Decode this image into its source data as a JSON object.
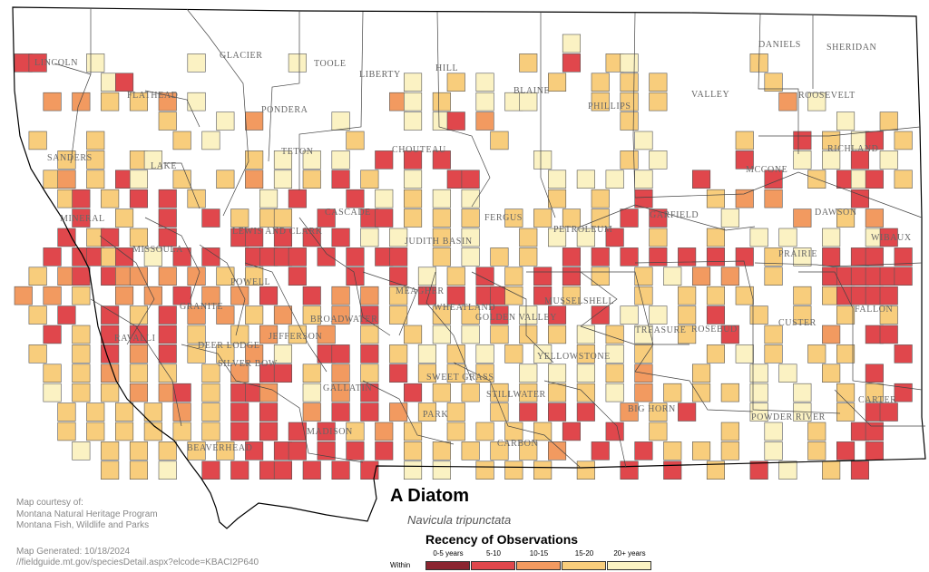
{
  "species": {
    "common_name": "A Diatom",
    "scientific_name": "Navicula tripunctata"
  },
  "legend": {
    "title": "Recency of Observations",
    "within_label": "Within",
    "items": [
      {
        "label": "0-5 years",
        "color": "#8b2530"
      },
      {
        "label": "5-10",
        "color": "#e0474c"
      },
      {
        "label": "10-15",
        "color": "#f29a60"
      },
      {
        "label": "15-20",
        "color": "#f8cd7c"
      },
      {
        "label": "20+ years",
        "color": "#fbf2c3"
      }
    ]
  },
  "credits": {
    "line1": "Map courtesy of:",
    "line2": "Montana Natural Heritage Program",
    "line3": "Montana Fish, Wildlife and Parks",
    "generated": "Map Generated: 10/18/2024",
    "url": "//fieldguide.mt.gov/speciesDetail.aspx?elcode=KBACI2P640"
  },
  "county_labels": [
    "GLACIER",
    "TOOLE",
    "LIBERTY",
    "HILL",
    "BLAINE",
    "PHILLIPS",
    "VALLEY",
    "DANIELS",
    "SHERIDAN",
    "LINCOLN",
    "FLATHEAD",
    "PONDERA",
    "ROOSEVELT",
    "TETON",
    "CHOUTEAU",
    "RICHLAND",
    "SANDERS",
    "LAKE",
    "MCCONE",
    "CASCADE",
    "FERGUS",
    "GARFIELD",
    "DAWSON",
    "MINERAL",
    "PETROLEUM",
    "LEWIS AND CLARK",
    "MISSOULA",
    "JUDITH BASIN",
    "PRAIRIE",
    "WIBAUX",
    "POWELL",
    "MEAGHER",
    "MUSSELSHELL",
    "GRANITE",
    "WHEATLAND",
    "GOLDEN VALLEY",
    "CUSTER",
    "FALLON",
    "RAVALLI",
    "DEER LODGE",
    "BROADWATER",
    "JEFFERSON",
    "ROSEBUD",
    "TREASURE",
    "SILVER BOW",
    "YELLOWSTONE",
    "SWEET GRASS",
    "STILLWATER",
    "GALLATIN",
    "PARK",
    "BIG HORN",
    "CARTER",
    "POWDER RIVER",
    "MADISON",
    "BEAVERHEAD",
    "CARBON"
  ],
  "observations": {
    "column_origin": 16,
    "row_origin": 38,
    "cell_size": 21.4,
    "grid": [
      "                                      5                       ",
      "X0   5      4      5               3  X  35        3          ",
      "      4X                   4  3 4    3  3 3 3       3         ",
      "  2 1 3 3 2 4             24 3  4 54    3 3 3        2 4      ",
      "          3   4 2     4    4 4X 2         3              4  3  ",
      " 3   3     3 4         3         3         4      3   X 3 4X 3 ",
      "   3 3  34      3 4 4 4  X X X      4     3 5     X   4 4 X 5 ",
      "  32 3 X4  3  3 2 4 3 X 3  4  XX     4 4 4 4   X    X  3 X4X 3 ",
      "   3X 3 X X 3    4 X   X 4 3 4 4     3  3  X    3 2 2     X   X",
      "    X  3  X  X 3 33  X  XX 3 3 3  3 3 3 3 X X    4    2  3 2  ",
      "   X 3X 3 X    XX X X X 4 4  3 4   3 4 4 X  3   3  4 4  4  4X X",
      "  X XX3X 4 X X  XXXX X X XX  3 4 3 3  X X X X X X X 3 4 X XX X",
      " 3 2X X22 2 2 3 3  X   X  X 4 3 X 3 X X 3  3 4 2 2  3   XXXXXX",
      "2 2 3  2 2 X 2 2 X  X 2 2 3 X X XX3 X 3    3  3 3 3   3 3XXXX ",
      " 3 X  X 3 X 2 2 3 2 3 2 X 3  3 3 X 4 X  X 4 4 3 X  3  3  3  3 ",
      "  X 3 X X X 3  3 2 3 2  3  3 4 4 3 3 3 5 3 4  3  X  3   2  XX ",
      " 3  3 X 2 X 3 3 2 4  XX X 3 4 3 5 3 4  3 4 3    3 4 3  3 3   X",
      "  3 3 2 3 3  3 2 XX 3 2 3 X 3 3 3  4 4 4 3 2   3   4 4  3  X  ",
      "  4 3 3 2 2X 3 XX2  4 2 X  X 3 3 3 3 3 3 4 2 3 3 3 4  4  3 3 X",
      "   3 3 3 3 2 3 X X  2 X X 2 3 3  3 X X X  2 3 X    4  4  3 XX ",
      "   3 3 3 3 3 3 X X X X 3 2 3  3 3 3 3 X  X  3    3  4  3  XX  ",
      "    4 3 3 3 3 3 X XX X X X 3 3 3 3 3 2  X  X 3 3 3  4  3 X X  ",
      "      3 3 4  X X XX X X X  4 4  3 3 3  3  X  X  3  X 4  3 X  "
    ]
  }
}
